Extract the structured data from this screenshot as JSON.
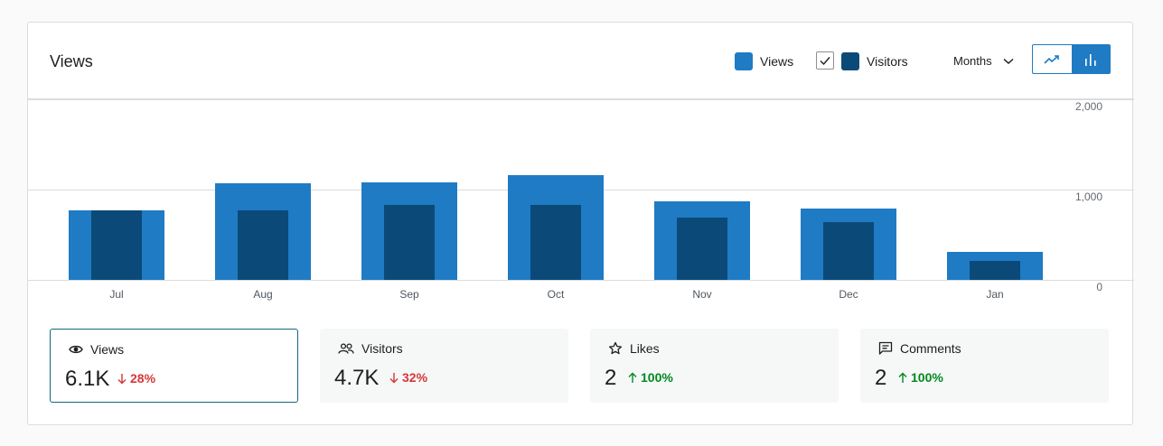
{
  "header": {
    "title": "Views",
    "legend": [
      {
        "label": "Views",
        "color": "#1f7bc4"
      },
      {
        "label": "Visitors",
        "color": "#0b4a78"
      }
    ],
    "period": "Months",
    "chart_toggle": [
      "line-chart-icon",
      "bar-chart-icon"
    ]
  },
  "chart_data": {
    "type": "bar",
    "categories": [
      "Jul",
      "Aug",
      "Sep",
      "Oct",
      "Nov",
      "Dec",
      "Jan"
    ],
    "series": [
      {
        "name": "Views",
        "color": "#1f7bc4",
        "values": [
          770,
          1070,
          1080,
          1160,
          870,
          790,
          310
        ]
      },
      {
        "name": "Visitors",
        "color": "#0b4a78",
        "values": [
          770,
          770,
          830,
          830,
          690,
          640,
          210
        ]
      }
    ],
    "yticks": [
      "2,000",
      "1,000",
      "0"
    ],
    "ylim": [
      0,
      2000
    ]
  },
  "stats": [
    {
      "icon": "eye-icon",
      "label": "Views",
      "value": "6.1K",
      "delta": "28%",
      "direction": "down",
      "selected": true
    },
    {
      "icon": "people-icon",
      "label": "Visitors",
      "value": "4.7K",
      "delta": "32%",
      "direction": "down",
      "selected": false
    },
    {
      "icon": "star-icon",
      "label": "Likes",
      "value": "2",
      "delta": "100%",
      "direction": "up",
      "selected": false
    },
    {
      "icon": "comment-icon",
      "label": "Comments",
      "value": "2",
      "delta": "100%",
      "direction": "up",
      "selected": false
    }
  ]
}
